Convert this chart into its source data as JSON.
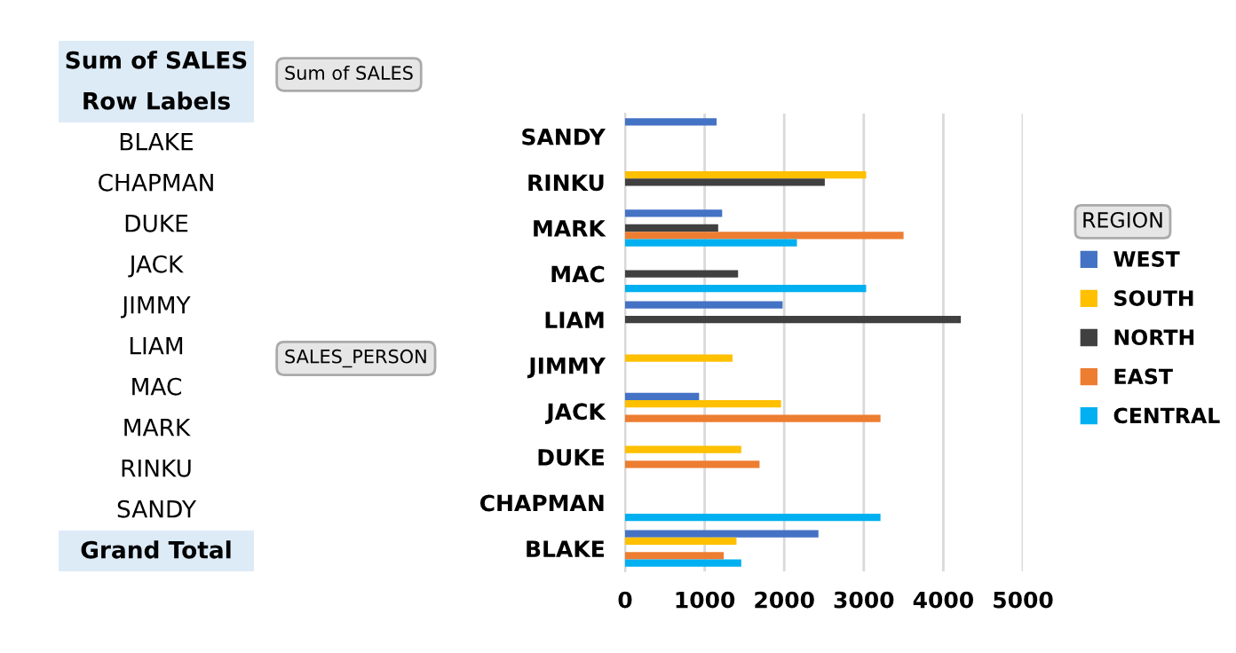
{
  "chart_data": {
    "type": "bar",
    "orientation": "horizontal",
    "categories": [
      "SANDY",
      "RINKU",
      "MARK",
      "MAC",
      "LIAM",
      "JIMMY",
      "JACK",
      "DUKE",
      "CHAPMAN",
      "BLAKE"
    ],
    "series": [
      {
        "name": "WEST",
        "color": "#4472c4",
        "values": [
          1150,
          null,
          1220,
          null,
          1980,
          null,
          930,
          null,
          null,
          2430
        ]
      },
      {
        "name": "SOUTH",
        "color": "#ffc000",
        "values": [
          null,
          3030,
          null,
          null,
          null,
          1350,
          1960,
          1460,
          null,
          1400
        ]
      },
      {
        "name": "NORTH",
        "color": "#404040",
        "values": [
          null,
          2510,
          1170,
          1420,
          4220,
          null,
          null,
          null,
          null,
          null
        ]
      },
      {
        "name": "EAST",
        "color": "#ed7d31",
        "values": [
          null,
          null,
          3500,
          null,
          null,
          null,
          3210,
          1690,
          null,
          1240
        ]
      },
      {
        "name": "CENTRAL",
        "color": "#00b0f0",
        "values": [
          null,
          null,
          2160,
          3030,
          null,
          null,
          null,
          null,
          3210,
          1460
        ]
      }
    ],
    "xlim": [
      0,
      5000
    ],
    "xticks": [
      0,
      1000,
      2000,
      3000,
      4000,
      5000
    ],
    "grid": "x",
    "legend": "right",
    "legend_title": "REGION",
    "annotations": [
      "Sum of SALES",
      "Row Labels",
      "BLAKE",
      "CHAPMAN",
      "DUKE",
      "JACK",
      "JIMMY",
      "LIAM",
      "MAC",
      "MARK",
      "RINKU",
      "SANDY",
      "Grand Total",
      "Sum of SALES",
      "SALES_PERSON"
    ]
  }
}
